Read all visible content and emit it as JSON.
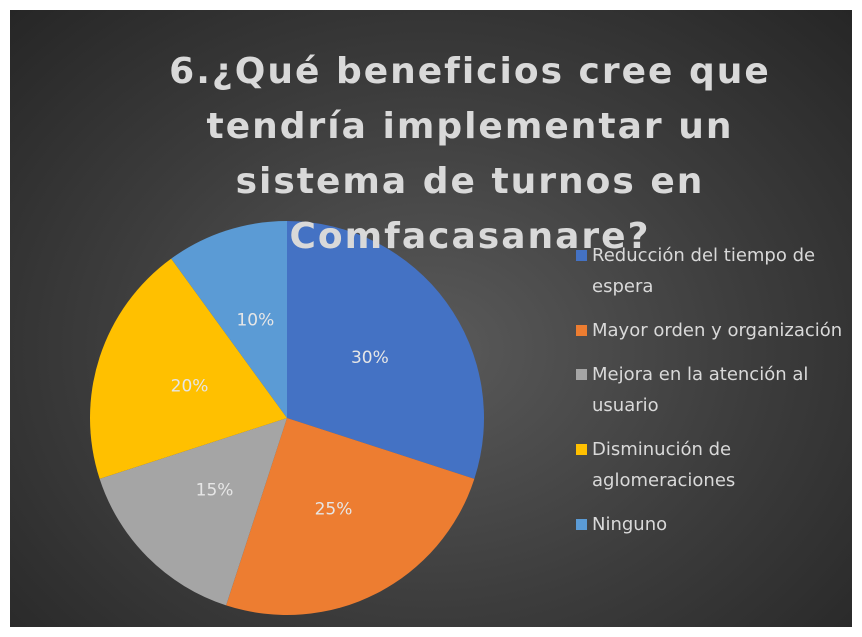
{
  "chart_data": {
    "type": "pie",
    "title": "6.¿Qué beneficios cree que tendría implementar un sistema de turnos en Comfacasanare?",
    "categories": [
      "Reducción del tiempo de espera",
      "Mayor orden y organización",
      "Mejora en la atención al usuario",
      "Disminución de aglomeraciones",
      "Ninguno"
    ],
    "values": [
      30,
      25,
      15,
      20,
      10
    ],
    "value_labels": [
      "30%",
      "25%",
      "15%",
      "20%",
      "10%"
    ],
    "colors": [
      "#4472c4",
      "#ed7d31",
      "#a5a5a5",
      "#ffc000",
      "#5b9bd5"
    ],
    "legend": "right"
  }
}
